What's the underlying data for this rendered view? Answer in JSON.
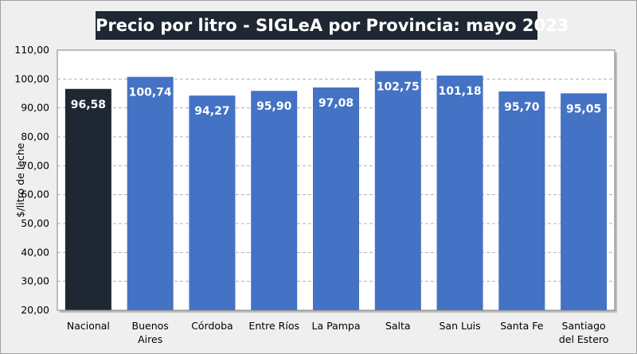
{
  "chart_data": {
    "type": "bar",
    "title": "Precio por litro - SIGLeA por Provincia: mayo 2023",
    "xlabel": "",
    "ylabel": "$/litro de leche",
    "ylim": [
      20,
      110
    ],
    "yticks": [
      "20,00",
      "30,00",
      "40,00",
      "50,00",
      "60,00",
      "70,00",
      "80,00",
      "90,00",
      "100,00",
      "110,00"
    ],
    "grid": true,
    "categories": [
      [
        "Nacional"
      ],
      [
        "Buenos",
        "Aires"
      ],
      [
        "Córdoba"
      ],
      [
        "Entre Ríos"
      ],
      [
        "La Pampa"
      ],
      [
        "Salta"
      ],
      [
        "San Luis"
      ],
      [
        "Santa Fe"
      ],
      [
        "Santiago",
        "del Estero"
      ]
    ],
    "values": [
      96.58,
      100.74,
      94.27,
      95.9,
      97.08,
      102.75,
      101.18,
      95.7,
      95.05
    ],
    "data_labels": [
      "96,58",
      "100,74",
      "94,27",
      "95,90",
      "97,08",
      "102,75",
      "101,18",
      "95,70",
      "95,05"
    ],
    "colors": {
      "highlight": "#1f2733",
      "bar": "#4472c4"
    },
    "highlight_index": 0
  }
}
